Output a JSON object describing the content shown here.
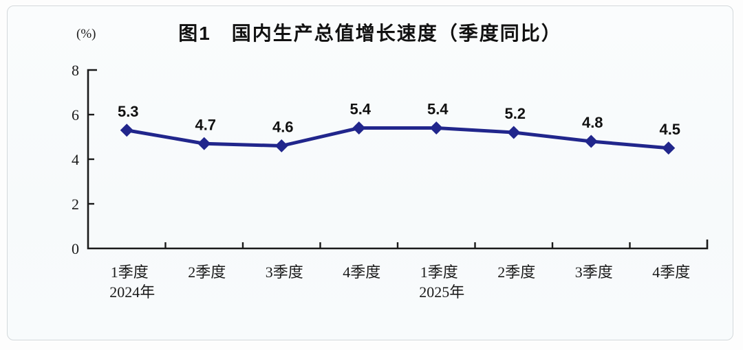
{
  "chart_data": {
    "type": "line",
    "title": "图1　国内生产总值增长速度（季度同比）",
    "unit_label": "(%)",
    "categories": [
      "1季度",
      "2季度",
      "3季度",
      "4季度",
      "1季度",
      "2季度",
      "3季度",
      "4季度"
    ],
    "year_labels": [
      {
        "index": 0,
        "label": "2024年"
      },
      {
        "index": 4,
        "label": "2025年"
      }
    ],
    "series": [
      {
        "name": "国内生产总值增长速度（季度同比）",
        "values": [
          5.3,
          4.7,
          4.6,
          5.4,
          5.4,
          5.2,
          4.8,
          4.5
        ]
      }
    ],
    "data_labels": [
      "5.3",
      "4.7",
      "4.6",
      "5.4",
      "5.4",
      "5.2",
      "4.8",
      "4.5"
    ],
    "ylim": [
      0,
      8
    ],
    "ytick_interval": 2,
    "ytick_labels": [
      "0",
      "2",
      "4",
      "6",
      "8"
    ],
    "grid": false,
    "legend_position": "none",
    "colors": {
      "line": "#21268c",
      "marker": "#21268c",
      "axis": "#1a1a1a",
      "data_label": "#111111",
      "title": "#111111",
      "card_background": "#f8fafb",
      "card_border": "#d3d8db",
      "page_background": "#fdfdfd"
    }
  }
}
